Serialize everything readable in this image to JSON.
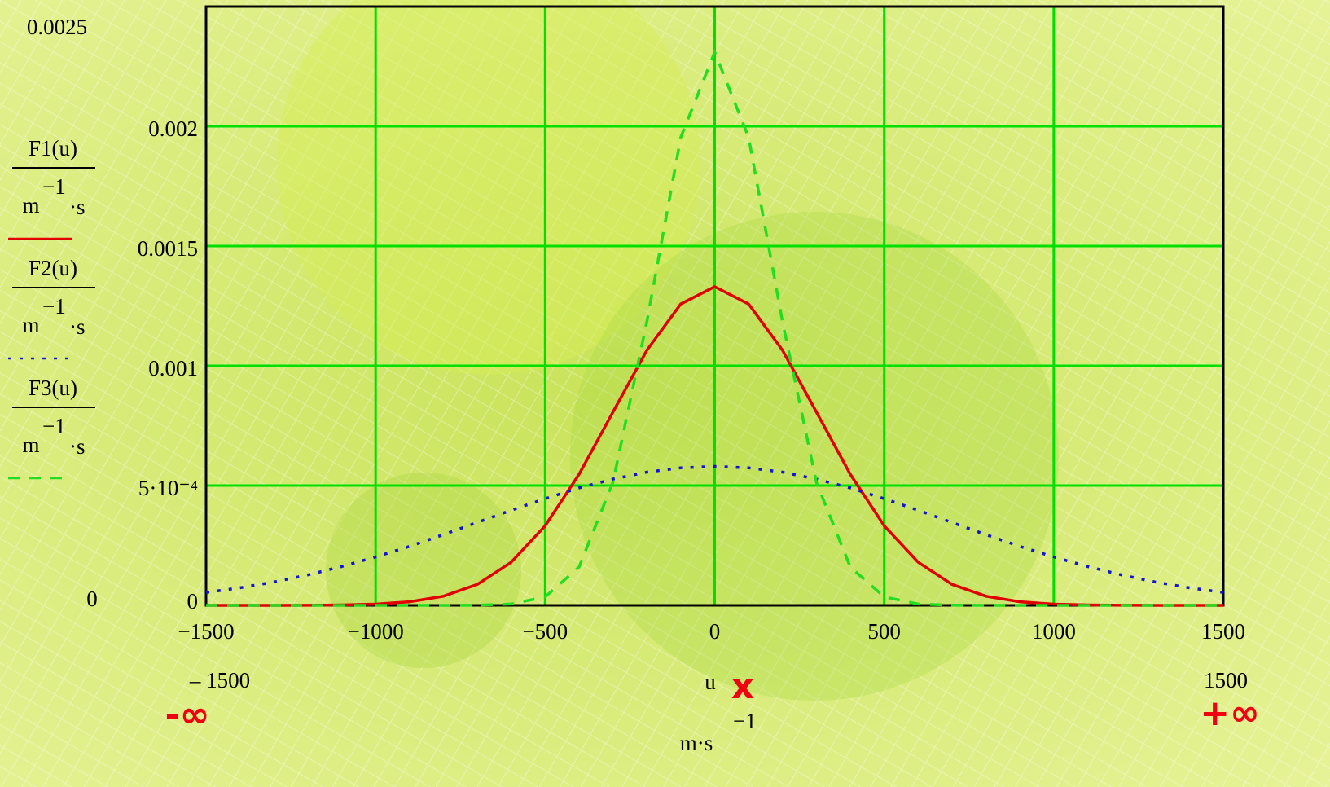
{
  "chart_data": {
    "type": "line",
    "x": [
      -1500,
      -1400,
      -1300,
      -1200,
      -1100,
      -1000,
      -900,
      -800,
      -700,
      -600,
      -500,
      -400,
      -300,
      -200,
      -100,
      0,
      100,
      200,
      300,
      400,
      500,
      600,
      700,
      800,
      900,
      1000,
      1100,
      1200,
      1300,
      1400,
      1500
    ],
    "series": [
      {
        "name": "F1(u)",
        "color": "#e00000",
        "style": "solid",
        "values": [
          0,
          0,
          0,
          4.5e-07,
          1.6e-06,
          5.1e-06,
          1.48e-05,
          3.8e-05,
          8.74e-05,
          0.00018,
          0.000332,
          0.000547,
          0.000807,
          0.001065,
          0.001258,
          0.00133,
          0.001258,
          0.001065,
          0.000807,
          0.000547,
          0.000332,
          0.00018,
          8.74e-05,
          3.8e-05,
          1.48e-05,
          5.1e-06,
          1.6e-06,
          4.5e-07,
          0,
          0,
          0
        ]
      },
      {
        "name": "F2(u)",
        "color": "#1414d2",
        "style": "dot",
        "values": [
          5.39e-05,
          7.32e-05,
          9.73e-05,
          0.000127,
          0.000162,
          0.000202,
          0.000246,
          0.000295,
          0.000346,
          0.000397,
          0.000445,
          0.00049,
          0.000527,
          0.000556,
          0.000574,
          0.00058,
          0.000574,
          0.000556,
          0.000527,
          0.00049,
          0.000445,
          0.000397,
          0.000346,
          0.000295,
          0.000246,
          0.000202,
          0.000162,
          0.000127,
          9.73e-05,
          7.32e-05,
          5.39e-05
        ]
      },
      {
        "name": "F3(u)",
        "color": "#22dd22",
        "style": "dash",
        "values": [
          0,
          0,
          0,
          0,
          0,
          0,
          0,
          0,
          6.4e-07,
          5.6e-06,
          3.54e-05,
          0.00016,
          0.000514,
          0.001184,
          0.001954,
          0.00231,
          0.001954,
          0.001184,
          0.000514,
          0.00016,
          3.54e-05,
          5.6e-06,
          6.4e-07,
          0,
          0,
          0,
          0,
          0,
          0,
          0,
          0
        ]
      }
    ],
    "y_unit": {
      "base": "m",
      "exp": "−1",
      "rest": "·s"
    },
    "x_label": "u",
    "x_unit": {
      "base": "m·s",
      "exp": "−1"
    },
    "xlim": [
      -1500,
      1500
    ],
    "x_limit_labels": [
      "– 1500",
      "1500"
    ],
    "xticks": [
      {
        "value": -1500,
        "label": "−1500"
      },
      {
        "value": -1000,
        "label": "−1000"
      },
      {
        "value": -500,
        "label": "−500"
      },
      0,
      500,
      1000,
      1500
    ],
    "ylim": [
      0,
      0.0025
    ],
    "yticks": [
      0,
      {
        "value": 0.0005,
        "label": "5·10⁻⁴"
      },
      0.001,
      0.0015,
      0.002
    ],
    "grid": true,
    "grid_color": "#00e000",
    "annotations": [
      "-∞",
      "x",
      "+∞"
    ]
  }
}
